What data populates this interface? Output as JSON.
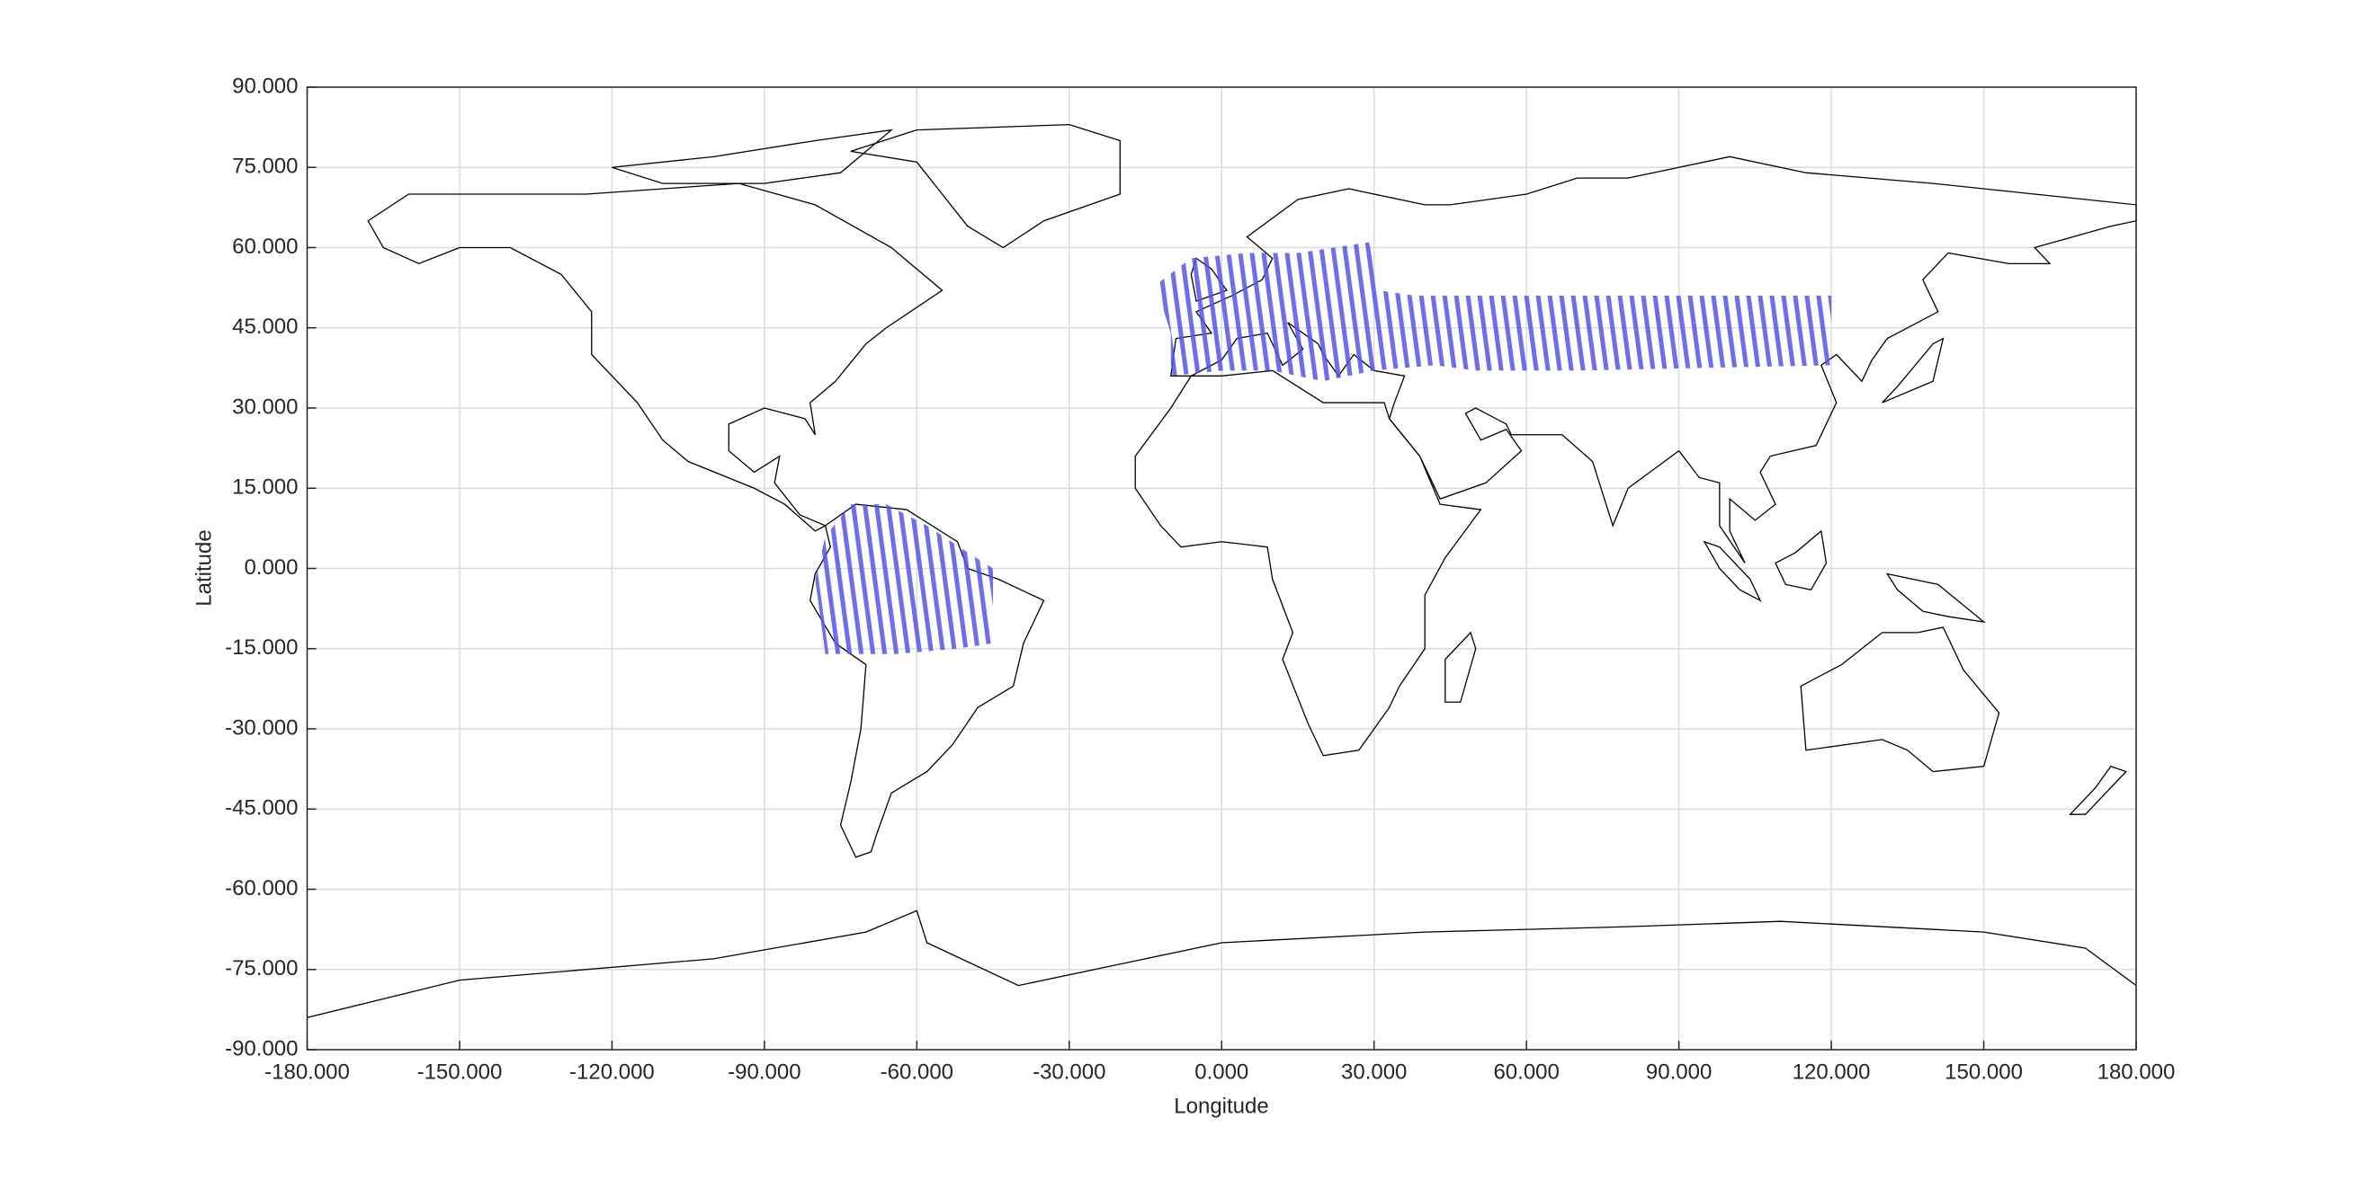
{
  "chart_data": {
    "type": "map",
    "xlabel": "Longitude",
    "ylabel": "Latitude",
    "xlim": [
      -180,
      180
    ],
    "ylim": [
      -90,
      90
    ],
    "xticks": [
      {
        "value": -180,
        "label": "-180.000"
      },
      {
        "value": -150,
        "label": "-150.000"
      },
      {
        "value": -120,
        "label": "-120.000"
      },
      {
        "value": -90,
        "label": "-90.000"
      },
      {
        "value": -60,
        "label": "-60.000"
      },
      {
        "value": -30,
        "label": "-30.000"
      },
      {
        "value": 0,
        "label": "0.000"
      },
      {
        "value": 30,
        "label": "30.000"
      },
      {
        "value": 60,
        "label": "60.000"
      },
      {
        "value": 90,
        "label": "90.000"
      },
      {
        "value": 120,
        "label": "120.000"
      },
      {
        "value": 150,
        "label": "150.000"
      },
      {
        "value": 180,
        "label": "180.000"
      }
    ],
    "yticks": [
      {
        "value": -90,
        "label": "-90.000"
      },
      {
        "value": -75,
        "label": "-75.000"
      },
      {
        "value": -60,
        "label": "-60.000"
      },
      {
        "value": -45,
        "label": "-45.000"
      },
      {
        "value": -30,
        "label": "-30.000"
      },
      {
        "value": -15,
        "label": "-15.000"
      },
      {
        "value": 0,
        "label": "0.000"
      },
      {
        "value": 15,
        "label": "15.000"
      },
      {
        "value": 30,
        "label": "30.000"
      },
      {
        "value": 45,
        "label": "45.000"
      },
      {
        "value": 60,
        "label": "60.000"
      },
      {
        "value": 75,
        "label": "75.000"
      },
      {
        "value": 90,
        "label": "90.000"
      }
    ],
    "grid": true,
    "swath_color": "#5555e6"
  }
}
